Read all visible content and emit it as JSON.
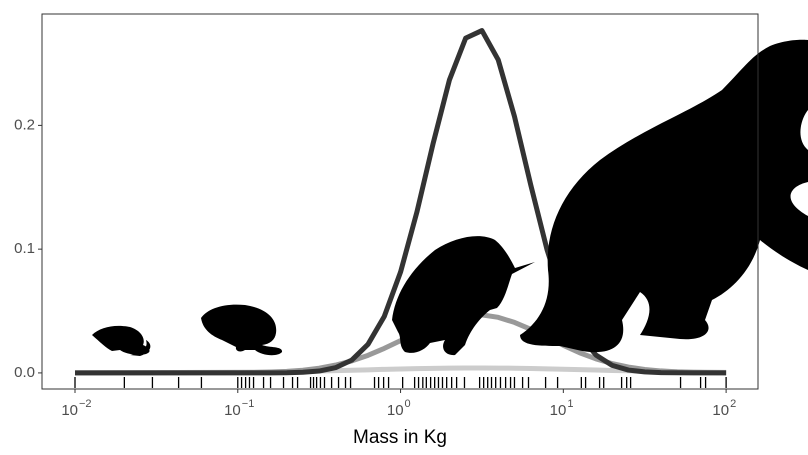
{
  "chart_data": {
    "type": "line",
    "x_label": "Mass in Kg",
    "log_x": true,
    "x": [
      0.01,
      0.126,
      0.158,
      0.2,
      0.251,
      0.316,
      0.398,
      0.501,
      0.631,
      0.794,
      1,
      1.259,
      1.585,
      1.995,
      2.512,
      3.162,
      3.981,
      5.012,
      6.31,
      7.943,
      10,
      12.59,
      15.85,
      19.95,
      25.12,
      31.62,
      39.81,
      50.12,
      63.1,
      100
    ],
    "series": [
      {
        "color": "#cccccc",
        "values": [
          0,
          0.0006,
          0.0008,
          0.001,
          0.0012,
          0.0015,
          0.0018,
          0.0022,
          0.0025,
          0.0029,
          0.0032,
          0.0035,
          0.0037,
          0.0039,
          0.004,
          0.004,
          0.0039,
          0.0038,
          0.0036,
          0.0033,
          0.003,
          0.0027,
          0.0023,
          0.002,
          0.0017,
          0.0014,
          0.0011,
          0.0009,
          0.0007,
          0.0004
        ]
      },
      {
        "color": "#999999",
        "values": [
          0,
          0.0003,
          0.0006,
          0.0012,
          0.0022,
          0.0038,
          0.0063,
          0.0097,
          0.0142,
          0.0198,
          0.0261,
          0.0327,
          0.0387,
          0.0435,
          0.0464,
          0.0469,
          0.0449,
          0.0408,
          0.0352,
          0.0287,
          0.0223,
          0.0163,
          0.0114,
          0.0075,
          0.0047,
          0.0028,
          0.0016,
          0.0008,
          0.0004,
          0.0001
        ]
      },
      {
        "color": "#333333",
        "values": [
          0,
          0,
          0,
          0.0001,
          0.0005,
          0.0015,
          0.0042,
          0.0103,
          0.0231,
          0.0456,
          0.0815,
          0.1298,
          0.1854,
          0.2366,
          0.2705,
          0.2766,
          0.253,
          0.2071,
          0.1518,
          0.0995,
          0.0584,
          0.0306,
          0.0145,
          0.0061,
          0.0023,
          0.0008,
          0.0002,
          0.0001,
          0,
          0
        ]
      }
    ],
    "rug": [
      0.01,
      0.0201,
      0.0299,
      0.0433,
      0.0598,
      0.1,
      0.1055,
      0.1117,
      0.118,
      0.125,
      0.144,
      0.159,
      0.191,
      0.217,
      0.233,
      0.28,
      0.292,
      0.305,
      0.322,
      0.341,
      0.377,
      0.416,
      0.459,
      0.493,
      0.692,
      0.733,
      0.787,
      0.844,
      1.03,
      1.22,
      1.29,
      1.37,
      1.44,
      1.53,
      1.62,
      1.71,
      1.81,
      1.92,
      2.06,
      2.21,
      2.47,
      3.06,
      3.24,
      3.43,
      3.62,
      3.84,
      4.11,
      4.42,
      4.74,
      5.01,
      5.62,
      6.11,
      7.78,
      9.22,
      12.9,
      13.7,
      16.7,
      17.7,
      22.8,
      24.5,
      25.9,
      52.5,
      69.7,
      74.8,
      100
    ],
    "xlim": [
      0.00627,
      157
    ],
    "xticks": [
      {
        "value": 0.01,
        "label": "10",
        "exponent": "−2"
      },
      {
        "value": 0.1,
        "label": "10",
        "exponent": "−1"
      },
      {
        "value": 1,
        "label": "10",
        "exponent": "0"
      },
      {
        "value": 10,
        "label": "10",
        "exponent": "1"
      },
      {
        "value": 100,
        "label": "10",
        "exponent": "2"
      }
    ],
    "ylim": [
      -0.013,
      0.29
    ],
    "yticks": [
      {
        "value": 0,
        "label": "0.0"
      },
      0.1,
      0.2
    ]
  }
}
